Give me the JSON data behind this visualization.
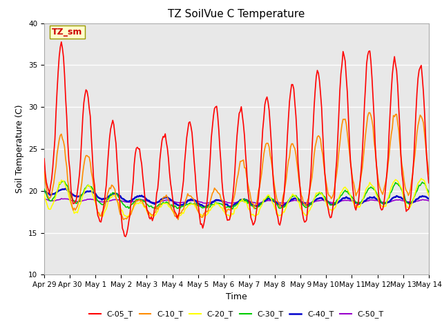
{
  "title": "TZ SoilVue C Temperature",
  "xlabel": "Time",
  "ylabel": "Soil Temperature (C)",
  "ylim": [
    10,
    40
  ],
  "xlim_days": [
    0,
    15
  ],
  "x_tick_labels": [
    "Apr 29",
    "Apr 30",
    "May 1",
    "May 2",
    "May 3",
    "May 4",
    "May 5",
    "May 6",
    "May 7",
    "May 8",
    "May 9",
    "May 10",
    "May 11",
    "May 12",
    "May 13",
    "May 14"
  ],
  "legend_labels": [
    "C-05_T",
    "C-10_T",
    "C-20_T",
    "C-30_T",
    "C-40_T",
    "C-50_T"
  ],
  "line_colors": [
    "#ff0000",
    "#ff8c00",
    "#ffff00",
    "#00cc00",
    "#0000cc",
    "#9900cc"
  ],
  "line_widths": [
    1.2,
    1.2,
    1.2,
    1.2,
    1.8,
    1.2
  ],
  "background_color": "#ffffff",
  "plot_bg_color": "#e8e8e8",
  "annotation_text": "TZ_sm",
  "annotation_color": "#cc0000",
  "annotation_bg": "#ffffcc",
  "title_fontsize": 11,
  "label_fontsize": 9,
  "tick_fontsize": 7.5,
  "legend_fontsize": 8
}
